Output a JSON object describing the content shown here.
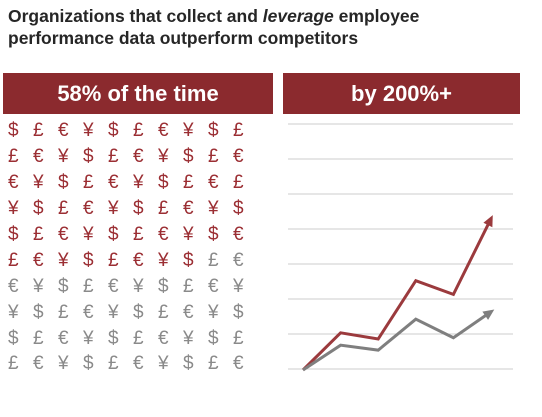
{
  "title": {
    "part1": "Organizations that collect and ",
    "emphasis": "leverage",
    "part2": " employee performance data outperform competitors"
  },
  "left_panel": {
    "heading": "58% of the time",
    "share_highlighted": 0.58,
    "rows": [
      [
        "$",
        "£",
        "€",
        "¥",
        "$",
        "£",
        "€",
        "¥",
        "$",
        "£"
      ],
      [
        "£",
        "€",
        "¥",
        "$",
        "£",
        "€",
        "¥",
        "$",
        "£",
        "€"
      ],
      [
        "€",
        "¥",
        "$",
        "£",
        "€",
        "¥",
        "$",
        "£",
        "€",
        "£"
      ],
      [
        "¥",
        "$",
        "£",
        "€",
        "¥",
        "$",
        "£",
        "€",
        "¥",
        "$"
      ],
      [
        "$",
        "£",
        "€",
        "¥",
        "$",
        "£",
        "€",
        "¥",
        "$",
        "€"
      ],
      [
        "£",
        "€",
        "¥",
        "$",
        "£",
        "€",
        "¥",
        "$",
        "£",
        "€"
      ],
      [
        "€",
        "¥",
        "$",
        "£",
        "€",
        "¥",
        "$",
        "£",
        "€",
        "¥"
      ],
      [
        "¥",
        "$",
        "£",
        "€",
        "¥",
        "$",
        "£",
        "€",
        "¥",
        "$"
      ],
      [
        "$",
        "£",
        "€",
        "¥",
        "$",
        "£",
        "€",
        "¥",
        "$",
        "£"
      ],
      [
        "£",
        "€",
        "¥",
        "$",
        "£",
        "€",
        "¥",
        "$",
        "£",
        "€"
      ]
    ]
  },
  "right_panel": {
    "heading": "by 200%+"
  },
  "colors": {
    "band": "#8b2a2e",
    "highlight_symbol": "#9b2e33",
    "muted_symbol": "#8a8a8a",
    "red_line": "#9b3a3d",
    "gray_line": "#7f7f7f",
    "gridline": "#cccccc"
  },
  "chart_data": {
    "type": "line",
    "x": [
      0,
      1,
      2,
      3,
      4,
      5
    ],
    "ylim": [
      0,
      10
    ],
    "grid": true,
    "series": [
      {
        "values": [
          0,
          1.5,
          1.25,
          3.6,
          3.05,
          6.1
        ],
        "color": "#9b3a3d",
        "arrow": true
      },
      {
        "values": [
          0,
          1.0,
          0.8,
          2.05,
          1.3,
          2.35
        ],
        "color": "#7f7f7f",
        "arrow": true
      }
    ]
  }
}
